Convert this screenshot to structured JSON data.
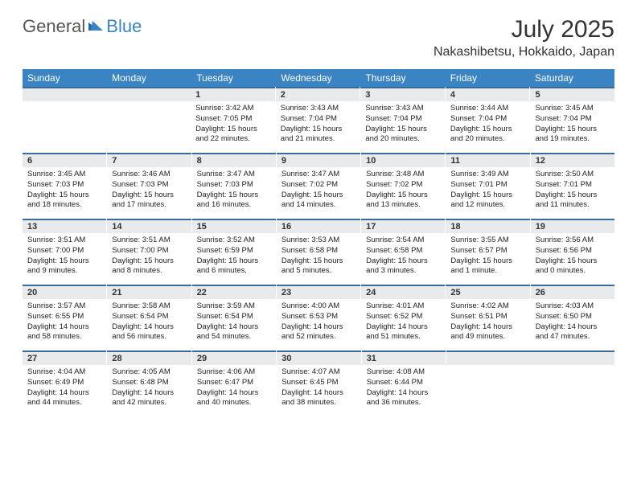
{
  "logo": {
    "text1": "General",
    "text2": "Blue"
  },
  "title": "July 2025",
  "location": "Nakashibetsu, Hokkaido, Japan",
  "colors": {
    "header_bar": "#3a84c4",
    "daynum_bg": "#e8eaec",
    "daynum_border": "#3a6a9a",
    "logo_gray": "#555555",
    "logo_blue": "#3a84c4",
    "text": "#222222",
    "background": "#ffffff"
  },
  "weekdays": [
    "Sunday",
    "Monday",
    "Tuesday",
    "Wednesday",
    "Thursday",
    "Friday",
    "Saturday"
  ],
  "weeks": [
    [
      null,
      null,
      {
        "n": "1",
        "sr": "Sunrise: 3:42 AM",
        "ss": "Sunset: 7:05 PM",
        "d1": "Daylight: 15 hours",
        "d2": "and 22 minutes."
      },
      {
        "n": "2",
        "sr": "Sunrise: 3:43 AM",
        "ss": "Sunset: 7:04 PM",
        "d1": "Daylight: 15 hours",
        "d2": "and 21 minutes."
      },
      {
        "n": "3",
        "sr": "Sunrise: 3:43 AM",
        "ss": "Sunset: 7:04 PM",
        "d1": "Daylight: 15 hours",
        "d2": "and 20 minutes."
      },
      {
        "n": "4",
        "sr": "Sunrise: 3:44 AM",
        "ss": "Sunset: 7:04 PM",
        "d1": "Daylight: 15 hours",
        "d2": "and 20 minutes."
      },
      {
        "n": "5",
        "sr": "Sunrise: 3:45 AM",
        "ss": "Sunset: 7:04 PM",
        "d1": "Daylight: 15 hours",
        "d2": "and 19 minutes."
      }
    ],
    [
      {
        "n": "6",
        "sr": "Sunrise: 3:45 AM",
        "ss": "Sunset: 7:03 PM",
        "d1": "Daylight: 15 hours",
        "d2": "and 18 minutes."
      },
      {
        "n": "7",
        "sr": "Sunrise: 3:46 AM",
        "ss": "Sunset: 7:03 PM",
        "d1": "Daylight: 15 hours",
        "d2": "and 17 minutes."
      },
      {
        "n": "8",
        "sr": "Sunrise: 3:47 AM",
        "ss": "Sunset: 7:03 PM",
        "d1": "Daylight: 15 hours",
        "d2": "and 16 minutes."
      },
      {
        "n": "9",
        "sr": "Sunrise: 3:47 AM",
        "ss": "Sunset: 7:02 PM",
        "d1": "Daylight: 15 hours",
        "d2": "and 14 minutes."
      },
      {
        "n": "10",
        "sr": "Sunrise: 3:48 AM",
        "ss": "Sunset: 7:02 PM",
        "d1": "Daylight: 15 hours",
        "d2": "and 13 minutes."
      },
      {
        "n": "11",
        "sr": "Sunrise: 3:49 AM",
        "ss": "Sunset: 7:01 PM",
        "d1": "Daylight: 15 hours",
        "d2": "and 12 minutes."
      },
      {
        "n": "12",
        "sr": "Sunrise: 3:50 AM",
        "ss": "Sunset: 7:01 PM",
        "d1": "Daylight: 15 hours",
        "d2": "and 11 minutes."
      }
    ],
    [
      {
        "n": "13",
        "sr": "Sunrise: 3:51 AM",
        "ss": "Sunset: 7:00 PM",
        "d1": "Daylight: 15 hours",
        "d2": "and 9 minutes."
      },
      {
        "n": "14",
        "sr": "Sunrise: 3:51 AM",
        "ss": "Sunset: 7:00 PM",
        "d1": "Daylight: 15 hours",
        "d2": "and 8 minutes."
      },
      {
        "n": "15",
        "sr": "Sunrise: 3:52 AM",
        "ss": "Sunset: 6:59 PM",
        "d1": "Daylight: 15 hours",
        "d2": "and 6 minutes."
      },
      {
        "n": "16",
        "sr": "Sunrise: 3:53 AM",
        "ss": "Sunset: 6:58 PM",
        "d1": "Daylight: 15 hours",
        "d2": "and 5 minutes."
      },
      {
        "n": "17",
        "sr": "Sunrise: 3:54 AM",
        "ss": "Sunset: 6:58 PM",
        "d1": "Daylight: 15 hours",
        "d2": "and 3 minutes."
      },
      {
        "n": "18",
        "sr": "Sunrise: 3:55 AM",
        "ss": "Sunset: 6:57 PM",
        "d1": "Daylight: 15 hours",
        "d2": "and 1 minute."
      },
      {
        "n": "19",
        "sr": "Sunrise: 3:56 AM",
        "ss": "Sunset: 6:56 PM",
        "d1": "Daylight: 15 hours",
        "d2": "and 0 minutes."
      }
    ],
    [
      {
        "n": "20",
        "sr": "Sunrise: 3:57 AM",
        "ss": "Sunset: 6:55 PM",
        "d1": "Daylight: 14 hours",
        "d2": "and 58 minutes."
      },
      {
        "n": "21",
        "sr": "Sunrise: 3:58 AM",
        "ss": "Sunset: 6:54 PM",
        "d1": "Daylight: 14 hours",
        "d2": "and 56 minutes."
      },
      {
        "n": "22",
        "sr": "Sunrise: 3:59 AM",
        "ss": "Sunset: 6:54 PM",
        "d1": "Daylight: 14 hours",
        "d2": "and 54 minutes."
      },
      {
        "n": "23",
        "sr": "Sunrise: 4:00 AM",
        "ss": "Sunset: 6:53 PM",
        "d1": "Daylight: 14 hours",
        "d2": "and 52 minutes."
      },
      {
        "n": "24",
        "sr": "Sunrise: 4:01 AM",
        "ss": "Sunset: 6:52 PM",
        "d1": "Daylight: 14 hours",
        "d2": "and 51 minutes."
      },
      {
        "n": "25",
        "sr": "Sunrise: 4:02 AM",
        "ss": "Sunset: 6:51 PM",
        "d1": "Daylight: 14 hours",
        "d2": "and 49 minutes."
      },
      {
        "n": "26",
        "sr": "Sunrise: 4:03 AM",
        "ss": "Sunset: 6:50 PM",
        "d1": "Daylight: 14 hours",
        "d2": "and 47 minutes."
      }
    ],
    [
      {
        "n": "27",
        "sr": "Sunrise: 4:04 AM",
        "ss": "Sunset: 6:49 PM",
        "d1": "Daylight: 14 hours",
        "d2": "and 44 minutes."
      },
      {
        "n": "28",
        "sr": "Sunrise: 4:05 AM",
        "ss": "Sunset: 6:48 PM",
        "d1": "Daylight: 14 hours",
        "d2": "and 42 minutes."
      },
      {
        "n": "29",
        "sr": "Sunrise: 4:06 AM",
        "ss": "Sunset: 6:47 PM",
        "d1": "Daylight: 14 hours",
        "d2": "and 40 minutes."
      },
      {
        "n": "30",
        "sr": "Sunrise: 4:07 AM",
        "ss": "Sunset: 6:45 PM",
        "d1": "Daylight: 14 hours",
        "d2": "and 38 minutes."
      },
      {
        "n": "31",
        "sr": "Sunrise: 4:08 AM",
        "ss": "Sunset: 6:44 PM",
        "d1": "Daylight: 14 hours",
        "d2": "and 36 minutes."
      },
      null,
      null
    ]
  ]
}
